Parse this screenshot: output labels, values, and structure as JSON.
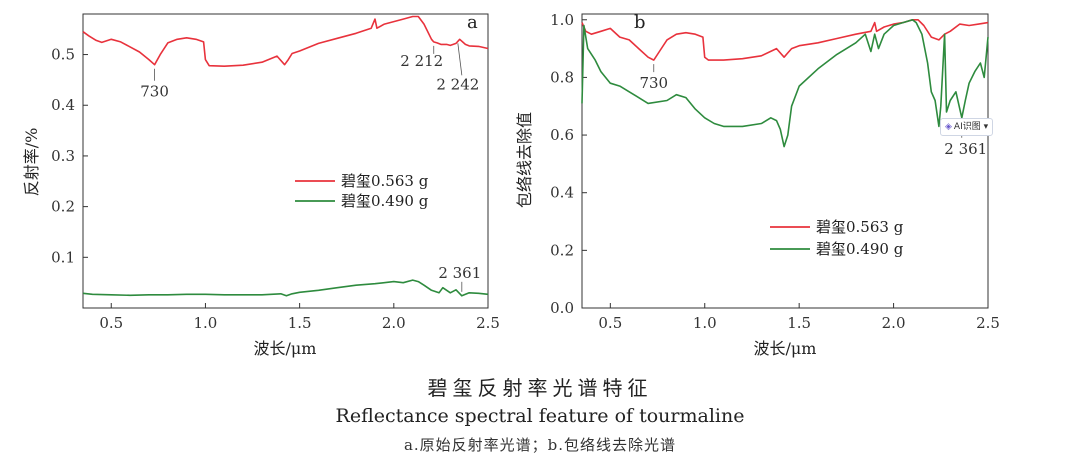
{
  "colors": {
    "red": "#e8323c",
    "green": "#2e8b3e",
    "axis": "#333333"
  },
  "figure_caption": {
    "zh": "碧玺反射率光谱特征",
    "en": "Reflectance spectral feature of tourmaline",
    "sub": "a.原始反射率光谱；b.包络线去除光谱"
  },
  "ai_tag": {
    "icon": "ai-recognize-icon",
    "label": "AI识图"
  },
  "chart_data": [
    {
      "type": "line",
      "panel": "a",
      "xlabel": "波长/μm",
      "ylabel": "反射率/%",
      "xlim": [
        0.35,
        2.5
      ],
      "ylim": [
        0.0,
        0.58
      ],
      "xticks": [
        0.5,
        1.0,
        1.5,
        2.0,
        2.5
      ],
      "xtick_labels": [
        "0.5",
        "1.0",
        "1.5",
        "2.0",
        "2.5"
      ],
      "yticks": [
        0.1,
        0.2,
        0.3,
        0.4,
        0.5
      ],
      "ytick_labels": [
        "0.1",
        "0.2",
        "0.3",
        "0.4",
        "0.5"
      ],
      "legend": {
        "placement": "center-right"
      },
      "series": [
        {
          "name": "碧玺0.563 g",
          "color": "#e8323c",
          "x": [
            0.35,
            0.38,
            0.42,
            0.45,
            0.5,
            0.55,
            0.6,
            0.65,
            0.7,
            0.73,
            0.76,
            0.8,
            0.85,
            0.9,
            0.95,
            0.99,
            1.0,
            1.02,
            1.1,
            1.2,
            1.3,
            1.38,
            1.42,
            1.44,
            1.46,
            1.5,
            1.6,
            1.7,
            1.8,
            1.88,
            1.9,
            1.91,
            1.95,
            2.0,
            2.05,
            2.1,
            2.13,
            2.16,
            2.2,
            2.212,
            2.23,
            2.25,
            2.28,
            2.3,
            2.33,
            2.35,
            2.38,
            2.4,
            2.45,
            2.5
          ],
          "y": [
            0.545,
            0.537,
            0.528,
            0.524,
            0.53,
            0.525,
            0.515,
            0.505,
            0.49,
            0.48,
            0.5,
            0.523,
            0.53,
            0.533,
            0.53,
            0.525,
            0.49,
            0.478,
            0.477,
            0.479,
            0.485,
            0.497,
            0.48,
            0.49,
            0.502,
            0.507,
            0.522,
            0.532,
            0.542,
            0.552,
            0.57,
            0.552,
            0.56,
            0.565,
            0.57,
            0.575,
            0.575,
            0.56,
            0.53,
            0.525,
            0.523,
            0.52,
            0.52,
            0.518,
            0.522,
            0.53,
            0.52,
            0.517,
            0.516,
            0.512
          ]
        },
        {
          "name": "碧玺0.490 g",
          "color": "#2e8b3e",
          "x": [
            0.35,
            0.4,
            0.5,
            0.6,
            0.7,
            0.8,
            0.9,
            1.0,
            1.1,
            1.2,
            1.3,
            1.4,
            1.43,
            1.46,
            1.5,
            1.6,
            1.7,
            1.8,
            1.9,
            2.0,
            2.05,
            2.1,
            2.13,
            2.16,
            2.2,
            2.24,
            2.26,
            2.3,
            2.33,
            2.361,
            2.4,
            2.45,
            2.5
          ],
          "y": [
            0.029,
            0.027,
            0.026,
            0.025,
            0.026,
            0.026,
            0.027,
            0.027,
            0.026,
            0.026,
            0.026,
            0.028,
            0.024,
            0.028,
            0.031,
            0.035,
            0.04,
            0.045,
            0.048,
            0.052,
            0.05,
            0.055,
            0.052,
            0.045,
            0.035,
            0.03,
            0.04,
            0.03,
            0.036,
            0.024,
            0.03,
            0.029,
            0.027
          ]
        }
      ],
      "annotations": [
        {
          "text": "730",
          "x": 0.73,
          "y": 0.48
        },
        {
          "text": "2 212",
          "x": 2.212,
          "y": 0.525
        },
        {
          "text": "2 242",
          "x": 2.34,
          "y": 0.53
        },
        {
          "text": "2 361",
          "x": 2.361,
          "y": 0.024
        }
      ]
    },
    {
      "type": "line",
      "panel": "b",
      "xlabel": "波长/μm",
      "ylabel": "包络线去除值",
      "xlim": [
        0.35,
        2.5
      ],
      "ylim": [
        0.0,
        1.02
      ],
      "xticks": [
        0.5,
        1.0,
        1.5,
        2.0,
        2.5
      ],
      "xtick_labels": [
        "0.5",
        "1.0",
        "1.5",
        "2.0",
        "2.5"
      ],
      "yticks": [
        0.0,
        0.2,
        0.4,
        0.6,
        0.8,
        1.0
      ],
      "ytick_labels": [
        "0.0",
        "0.2",
        "0.4",
        "0.6",
        "0.8",
        "1.0"
      ],
      "legend": {
        "placement": "lower-right"
      },
      "series": [
        {
          "name": "碧玺0.563 g",
          "color": "#e8323c",
          "x": [
            0.35,
            0.37,
            0.4,
            0.45,
            0.5,
            0.55,
            0.6,
            0.65,
            0.7,
            0.73,
            0.76,
            0.8,
            0.85,
            0.9,
            0.95,
            0.99,
            1.0,
            1.02,
            1.1,
            1.2,
            1.3,
            1.38,
            1.42,
            1.44,
            1.46,
            1.5,
            1.6,
            1.7,
            1.8,
            1.88,
            1.9,
            1.91,
            1.95,
            2.0,
            2.05,
            2.1,
            2.13,
            2.16,
            2.2,
            2.24,
            2.27,
            2.3,
            2.35,
            2.4,
            2.45,
            2.5
          ],
          "y": [
            0.99,
            0.96,
            0.95,
            0.96,
            0.97,
            0.94,
            0.93,
            0.9,
            0.87,
            0.86,
            0.89,
            0.93,
            0.95,
            0.955,
            0.95,
            0.94,
            0.87,
            0.86,
            0.86,
            0.865,
            0.875,
            0.9,
            0.87,
            0.885,
            0.9,
            0.91,
            0.92,
            0.935,
            0.95,
            0.96,
            0.99,
            0.96,
            0.975,
            0.985,
            0.99,
            1.0,
            1.0,
            0.98,
            0.94,
            0.93,
            0.95,
            0.96,
            0.985,
            0.98,
            0.985,
            0.99
          ]
        },
        {
          "name": "碧玺0.490 g",
          "color": "#2e8b3e",
          "x": [
            0.35,
            0.36,
            0.38,
            0.42,
            0.45,
            0.5,
            0.55,
            0.6,
            0.7,
            0.8,
            0.85,
            0.9,
            0.95,
            1.0,
            1.05,
            1.1,
            1.2,
            1.3,
            1.35,
            1.38,
            1.4,
            1.42,
            1.44,
            1.46,
            1.5,
            1.6,
            1.7,
            1.8,
            1.85,
            1.88,
            1.9,
            1.92,
            1.95,
            2.0,
            2.05,
            2.1,
            2.12,
            2.15,
            2.18,
            2.2,
            2.22,
            2.24,
            2.25,
            2.27,
            2.28,
            2.3,
            2.33,
            2.361,
            2.38,
            2.4,
            2.43,
            2.46,
            2.48,
            2.5
          ],
          "y": [
            0.71,
            0.98,
            0.9,
            0.86,
            0.82,
            0.78,
            0.77,
            0.75,
            0.71,
            0.72,
            0.74,
            0.73,
            0.69,
            0.66,
            0.64,
            0.63,
            0.63,
            0.64,
            0.66,
            0.65,
            0.62,
            0.56,
            0.6,
            0.7,
            0.77,
            0.83,
            0.88,
            0.92,
            0.95,
            0.89,
            0.95,
            0.9,
            0.95,
            0.98,
            0.99,
            1.0,
            0.99,
            0.95,
            0.85,
            0.75,
            0.72,
            0.63,
            0.7,
            0.95,
            0.68,
            0.72,
            0.75,
            0.66,
            0.72,
            0.78,
            0.82,
            0.85,
            0.8,
            0.94
          ]
        }
      ],
      "annotations": [
        {
          "text": "730",
          "x": 0.73,
          "y": 0.86
        },
        {
          "text": "2 361",
          "x": 2.361,
          "y": 0.66
        }
      ]
    }
  ]
}
